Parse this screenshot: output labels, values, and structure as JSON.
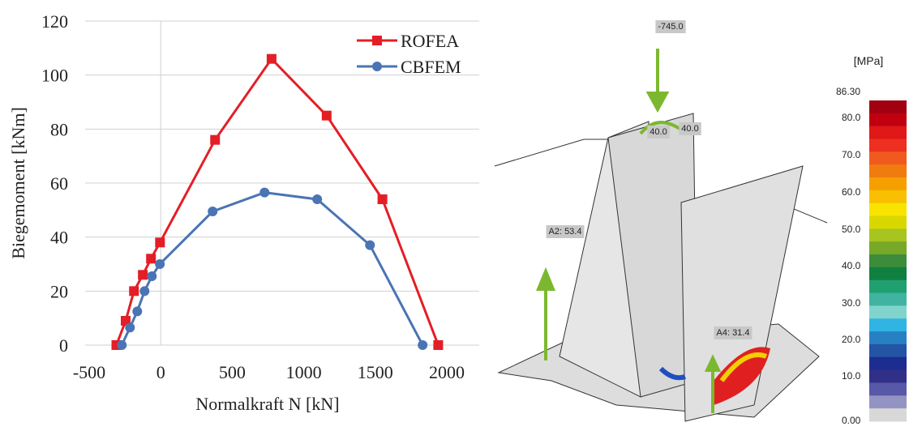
{
  "chart_data": {
    "type": "line",
    "xlabel": "Normalkraft N [kN]",
    "ylabel": "Biegemoment [kNm]",
    "xlim": [
      -500,
      2000
    ],
    "xticks": [
      -500,
      0,
      500,
      1000,
      1500,
      2000
    ],
    "ylim": [
      0,
      120
    ],
    "yticks": [
      0,
      20,
      40,
      60,
      80,
      100,
      120
    ],
    "grid": true,
    "legend": "top-right",
    "series": [
      {
        "name": "ROFEA",
        "color": "#e41e26",
        "marker": "square",
        "x": [
          -310,
          -245,
          -187,
          -125,
          -68,
          -5,
          380,
          775,
          1160,
          1550,
          1940
        ],
        "values": [
          0,
          9,
          20,
          26,
          32,
          38,
          76,
          106,
          85,
          54,
          0
        ]
      },
      {
        "name": "CBFEM",
        "color": "#4a74b4",
        "marker": "circle",
        "x": [
          -272,
          -215,
          -164,
          -113,
          -62,
          -6,
          363,
          726,
          1094,
          1463,
          1831
        ],
        "values": [
          0,
          6.5,
          12.5,
          20,
          25.5,
          30,
          49.5,
          56.5,
          54,
          37,
          0
        ]
      }
    ]
  },
  "fem_view": {
    "load_label": "-745.0",
    "moment_labels": [
      "40.0",
      "40.0"
    ],
    "anchor_labels": [
      "A2: 53.4",
      "A4: 31.4"
    ],
    "colorbar": {
      "unit": "[MPa]",
      "labels": [
        "86.30",
        "80.0",
        "70.0",
        "60.0",
        "50.0",
        "40.0",
        "30.0",
        "20.0",
        "10.0",
        "0.00"
      ]
    }
  }
}
